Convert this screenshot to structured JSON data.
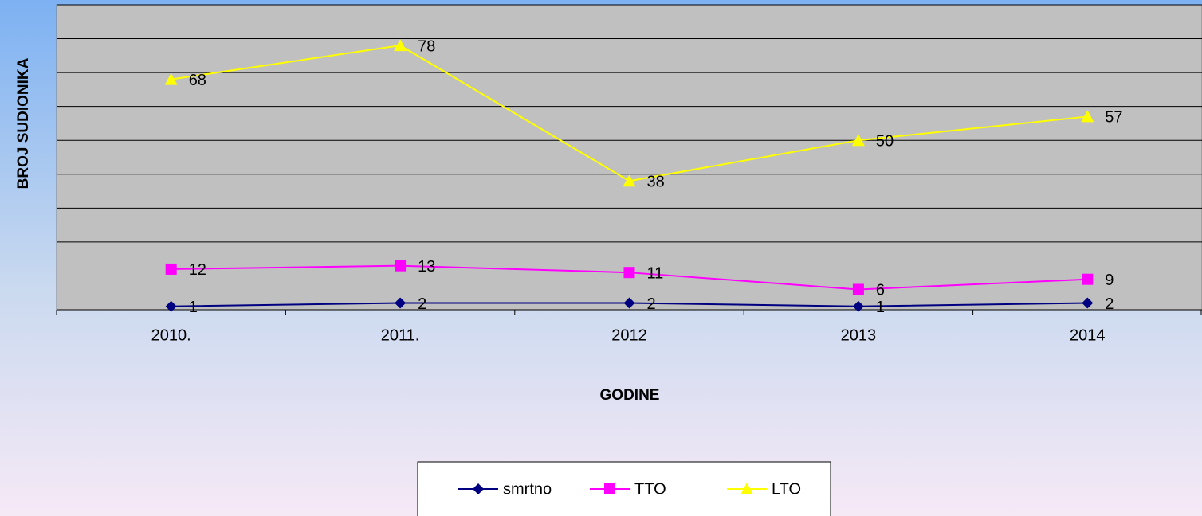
{
  "chart_data": {
    "type": "line",
    "x_label": "GODINE",
    "y_label": "BROJ SUDIONIKA",
    "categories": [
      "2010.",
      "2011.",
      "2012",
      "2013",
      "2014"
    ],
    "series": [
      {
        "name": "smrtno",
        "color": "#000080",
        "marker": "diamond",
        "values": [
          1,
          2,
          2,
          1,
          2
        ]
      },
      {
        "name": "TTO",
        "color": "#ff00ff",
        "marker": "square",
        "values": [
          12,
          13,
          11,
          6,
          9
        ]
      },
      {
        "name": "LTO",
        "color": "#ffff00",
        "marker": "triangle",
        "values": [
          68,
          78,
          38,
          50,
          57
        ]
      }
    ],
    "ylim": [
      0,
      90
    ],
    "yticks": [
      0,
      10,
      20,
      30,
      40,
      50,
      60,
      70,
      80,
      90
    ],
    "grid": true,
    "legend": "bottom"
  }
}
